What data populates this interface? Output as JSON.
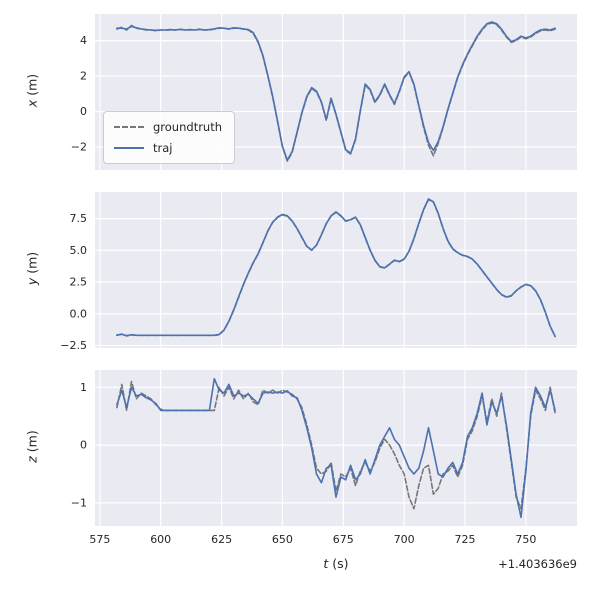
{
  "chart_data": {
    "type": "line",
    "title": "",
    "xlabel": {
      "var": "t",
      "unit": "(s)"
    },
    "x_offset_text": "+1.403636e9",
    "x_tick_values": [
      575,
      600,
      625,
      650,
      675,
      700,
      725,
      750
    ],
    "x_tick_labels": [
      "575",
      "600",
      "625",
      "650",
      "675",
      "700",
      "725",
      "750"
    ],
    "grid": true,
    "colors": {
      "background": "#EAEAF2",
      "grid": "#FFFFFF",
      "text": "#262626"
    },
    "styles": {
      "groundtruth": {
        "color": "#777777",
        "dash": true
      },
      "traj": {
        "color": "#4C72B0",
        "dash": false
      }
    },
    "legend": {
      "entries": [
        "groundtruth",
        "traj"
      ],
      "position": "lower left of first subplot"
    },
    "x": [
      582,
      584,
      586,
      588,
      590,
      592,
      594,
      596,
      598,
      600,
      602,
      604,
      606,
      608,
      610,
      612,
      614,
      616,
      618,
      620,
      622,
      624,
      626,
      628,
      630,
      632,
      634,
      636,
      638,
      640,
      642,
      644,
      646,
      648,
      650,
      652,
      654,
      656,
      658,
      660,
      662,
      664,
      666,
      668,
      670,
      672,
      674,
      676,
      678,
      680,
      682,
      684,
      686,
      688,
      690,
      692,
      694,
      696,
      698,
      700,
      702,
      704,
      706,
      708,
      710,
      712,
      714,
      716,
      718,
      720,
      722,
      724,
      726,
      728,
      730,
      732,
      734,
      736,
      738,
      740,
      742,
      744,
      746,
      748,
      750,
      752,
      754,
      756,
      758,
      760,
      762
    ],
    "subplots": [
      {
        "ylabel": {
          "var": "x",
          "unit": "(m)"
        },
        "ylim": [
          -3.3,
          5.5
        ],
        "y_tick_values": [
          -2,
          0,
          2,
          4
        ],
        "y_tick_labels": [
          "−2",
          "0",
          "2",
          "4"
        ],
        "show_legend": true,
        "groundtruth": [
          4.65,
          4.75,
          4.6,
          4.85,
          4.7,
          4.65,
          4.6,
          4.6,
          4.55,
          4.6,
          4.6,
          4.6,
          4.6,
          4.65,
          4.6,
          4.6,
          4.6,
          4.65,
          4.6,
          4.6,
          4.65,
          4.7,
          4.7,
          4.65,
          4.7,
          4.7,
          4.65,
          4.6,
          4.4,
          3.9,
          3.1,
          2.0,
          0.8,
          -0.6,
          -2.0,
          -2.8,
          -2.3,
          -1.2,
          -0.1,
          0.8,
          1.3,
          1.1,
          0.5,
          -0.5,
          0.7,
          -0.2,
          -1.2,
          -2.2,
          -2.4,
          -1.6,
          0.0,
          1.5,
          1.2,
          0.5,
          0.9,
          1.5,
          0.9,
          0.4,
          1.1,
          1.9,
          2.2,
          1.5,
          0.3,
          -0.9,
          -1.9,
          -2.5,
          -1.8,
          -0.9,
          0.1,
          1.0,
          1.9,
          2.6,
          3.2,
          3.7,
          4.2,
          4.6,
          4.9,
          5.0,
          4.9,
          4.6,
          4.2,
          3.9,
          4.0,
          4.2,
          4.1,
          4.2,
          4.4,
          4.55,
          4.6,
          4.55,
          4.65
        ],
        "traj": [
          4.7,
          4.7,
          4.65,
          4.8,
          4.72,
          4.66,
          4.62,
          4.6,
          4.58,
          4.6,
          4.6,
          4.62,
          4.6,
          4.63,
          4.6,
          4.62,
          4.6,
          4.63,
          4.6,
          4.62,
          4.66,
          4.72,
          4.7,
          4.66,
          4.72,
          4.7,
          4.66,
          4.62,
          4.45,
          3.95,
          3.15,
          2.05,
          0.85,
          -0.55,
          -1.95,
          -2.75,
          -2.25,
          -1.15,
          -0.05,
          0.85,
          1.35,
          1.15,
          0.55,
          -0.45,
          0.75,
          -0.15,
          -1.15,
          -2.15,
          -2.35,
          -1.55,
          0.05,
          1.55,
          1.25,
          0.55,
          0.95,
          1.55,
          0.95,
          0.45,
          1.15,
          1.95,
          2.25,
          1.55,
          0.35,
          -0.8,
          -1.75,
          -2.2,
          -1.7,
          -0.85,
          0.15,
          1.05,
          1.95,
          2.65,
          3.25,
          3.75,
          4.25,
          4.65,
          4.95,
          5.05,
          4.95,
          4.65,
          4.25,
          3.95,
          4.05,
          4.25,
          4.15,
          4.25,
          4.45,
          4.6,
          4.65,
          4.6,
          4.7
        ]
      },
      {
        "ylabel": {
          "var": "y",
          "unit": "(m)"
        },
        "ylim": [
          -2.7,
          9.6
        ],
        "y_tick_values": [
          -2.5,
          0.0,
          2.5,
          5.0,
          7.5
        ],
        "y_tick_labels": [
          "−2.5",
          "0.0",
          "2.5",
          "5.0",
          "7.5"
        ],
        "show_legend": false,
        "groundtruth": [
          -1.7,
          -1.6,
          -1.75,
          -1.65,
          -1.7,
          -1.7,
          -1.7,
          -1.7,
          -1.7,
          -1.7,
          -1.7,
          -1.7,
          -1.7,
          -1.7,
          -1.7,
          -1.7,
          -1.7,
          -1.7,
          -1.7,
          -1.7,
          -1.7,
          -1.65,
          -1.3,
          -0.6,
          0.3,
          1.3,
          2.3,
          3.2,
          4.0,
          4.7,
          5.6,
          6.5,
          7.2,
          7.6,
          7.8,
          7.7,
          7.3,
          6.7,
          6.0,
          5.3,
          5.0,
          5.4,
          6.2,
          7.1,
          7.7,
          8.0,
          7.7,
          7.3,
          7.4,
          7.6,
          7.0,
          6.0,
          5.0,
          4.2,
          3.7,
          3.6,
          3.9,
          4.2,
          4.1,
          4.3,
          4.9,
          5.9,
          7.1,
          8.2,
          9.0,
          8.8,
          7.9,
          6.7,
          5.7,
          5.1,
          4.8,
          4.6,
          4.5,
          4.3,
          3.9,
          3.4,
          2.9,
          2.4,
          1.9,
          1.5,
          1.3,
          1.4,
          1.8,
          2.1,
          2.3,
          2.2,
          1.8,
          1.1,
          0.1,
          -1.0,
          -1.8
        ],
        "traj": [
          -1.68,
          -1.62,
          -1.72,
          -1.66,
          -1.7,
          -1.7,
          -1.7,
          -1.7,
          -1.7,
          -1.7,
          -1.7,
          -1.7,
          -1.7,
          -1.7,
          -1.7,
          -1.7,
          -1.7,
          -1.7,
          -1.7,
          -1.7,
          -1.7,
          -1.63,
          -1.28,
          -0.58,
          0.33,
          1.33,
          2.33,
          3.23,
          4.03,
          4.73,
          5.63,
          6.53,
          7.23,
          7.63,
          7.83,
          7.72,
          7.32,
          6.72,
          6.03,
          5.32,
          5.03,
          5.42,
          6.23,
          7.12,
          7.72,
          8.03,
          7.72,
          7.32,
          7.42,
          7.62,
          7.02,
          6.03,
          5.03,
          4.23,
          3.72,
          3.62,
          3.92,
          4.23,
          4.12,
          4.32,
          4.93,
          5.93,
          7.13,
          8.23,
          9.05,
          8.83,
          7.93,
          6.73,
          5.73,
          5.13,
          4.82,
          4.62,
          4.52,
          4.32,
          3.92,
          3.42,
          2.92,
          2.42,
          1.92,
          1.52,
          1.32,
          1.42,
          1.82,
          2.12,
          2.32,
          2.22,
          1.82,
          1.12,
          0.12,
          -0.98,
          -1.78
        ]
      },
      {
        "ylabel": {
          "var": "z",
          "unit": "(m)"
        },
        "ylim": [
          -1.4,
          1.3
        ],
        "y_tick_values": [
          -1,
          0,
          1
        ],
        "y_tick_labels": [
          "−1",
          "0",
          "1"
        ],
        "show_legend": false,
        "groundtruth": [
          0.65,
          1.05,
          0.6,
          1.1,
          0.8,
          0.9,
          0.85,
          0.8,
          0.7,
          0.62,
          0.6,
          0.6,
          0.6,
          0.6,
          0.6,
          0.6,
          0.6,
          0.6,
          0.6,
          0.6,
          0.6,
          1.0,
          0.85,
          1.0,
          0.8,
          0.95,
          0.8,
          0.9,
          0.75,
          0.7,
          0.95,
          0.9,
          0.95,
          0.9,
          0.95,
          0.92,
          0.88,
          0.8,
          0.65,
          0.35,
          0.0,
          -0.4,
          -0.5,
          -0.45,
          -0.3,
          -0.8,
          -0.5,
          -0.55,
          -0.4,
          -0.7,
          -0.45,
          -0.3,
          -0.45,
          -0.3,
          -0.05,
          0.1,
          0.0,
          -0.15,
          -0.35,
          -0.5,
          -0.9,
          -1.1,
          -0.7,
          -0.4,
          -0.35,
          -0.85,
          -0.75,
          -0.5,
          -0.45,
          -0.35,
          -0.55,
          -0.35,
          0.1,
          0.25,
          0.5,
          0.85,
          0.4,
          0.8,
          0.5,
          0.9,
          0.3,
          -0.3,
          -0.9,
          -1.1,
          -0.4,
          0.5,
          0.95,
          0.8,
          0.6,
          1.0,
          0.55
        ],
        "traj": [
          0.7,
          0.95,
          0.65,
          1.0,
          0.85,
          0.88,
          0.82,
          0.78,
          0.72,
          0.6,
          0.6,
          0.6,
          0.6,
          0.6,
          0.6,
          0.6,
          0.6,
          0.6,
          0.6,
          0.6,
          1.15,
          0.95,
          0.9,
          1.05,
          0.85,
          0.9,
          0.85,
          0.88,
          0.8,
          0.72,
          0.9,
          0.92,
          0.9,
          0.92,
          0.9,
          0.94,
          0.85,
          0.82,
          0.6,
          0.3,
          -0.05,
          -0.5,
          -0.65,
          -0.4,
          -0.35,
          -0.9,
          -0.55,
          -0.6,
          -0.35,
          -0.6,
          -0.5,
          -0.25,
          -0.5,
          -0.25,
          0.0,
          0.15,
          0.3,
          0.1,
          0.0,
          -0.2,
          -0.4,
          -0.5,
          -0.4,
          -0.1,
          0.3,
          -0.1,
          -0.5,
          -0.55,
          -0.4,
          -0.3,
          -0.5,
          -0.3,
          0.15,
          0.3,
          0.55,
          0.9,
          0.35,
          0.75,
          0.55,
          0.85,
          0.35,
          -0.25,
          -0.85,
          -1.25,
          -0.45,
          0.55,
          1.0,
          0.85,
          0.65,
          0.95,
          0.6
        ]
      }
    ]
  }
}
